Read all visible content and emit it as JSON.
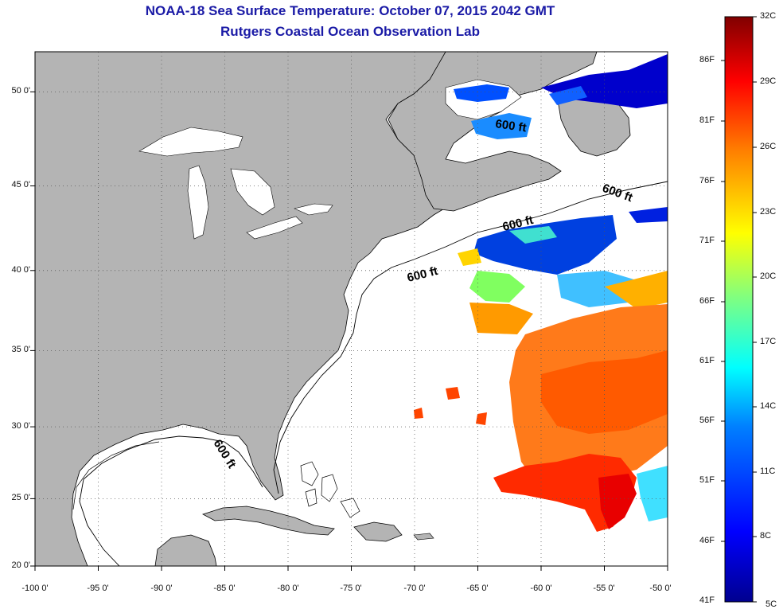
{
  "title": "NOAA-18 Sea Surface Temperature:  October 07, 2015 2042 GMT",
  "subtitle": "Rutgers Coastal Ocean Observation Lab",
  "map": {
    "lon_range": [
      -100,
      -50
    ],
    "lat_range": [
      20,
      52.4
    ],
    "lon_ticks": [
      "-100 0'",
      "-95 0'",
      "-90 0'",
      "-85 0'",
      "-80 0'",
      "-75 0'",
      "-70 0'",
      "-65 0'",
      "-60 0'",
      "-55 0'",
      "-50 0'"
    ],
    "lat_ticks": [
      "20 0'",
      "25 0'",
      "30 0'",
      "35 0'",
      "40 0'",
      "45 0'",
      "50 0'"
    ],
    "grid": "dotted",
    "land_color": "#b4b4b4",
    "contour_label": "600 ft",
    "contour_label_count": 5
  },
  "colorbar": {
    "celsius_labels": [
      "32C",
      "29C",
      "26C",
      "23C",
      "20C",
      "17C",
      "14C",
      "11C",
      "8C",
      "5C"
    ],
    "fahrenheit_labels": [
      "86F",
      "81F",
      "76F",
      "71F",
      "66F",
      "61F",
      "56F",
      "51F",
      "46F",
      "41F"
    ],
    "colors": [
      "#00008f",
      "#0000ff",
      "#0080ff",
      "#00ffff",
      "#80ff80",
      "#ffff00",
      "#ff8000",
      "#ff0000",
      "#800000"
    ]
  }
}
